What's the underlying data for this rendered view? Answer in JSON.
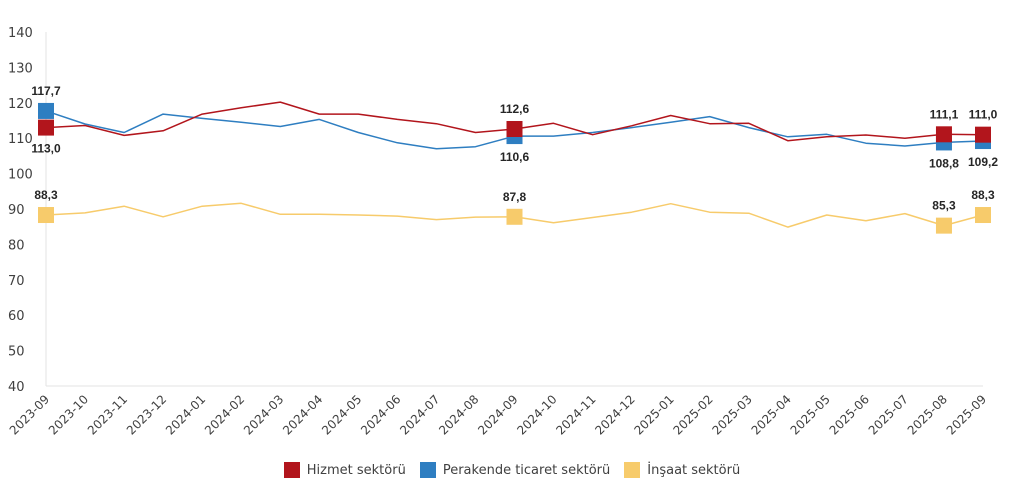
{
  "chart_data": {
    "type": "line",
    "title": "",
    "xlabel": "",
    "ylabel": "",
    "ylim": [
      40,
      140
    ],
    "yticks": [
      "140",
      "130",
      "120",
      "110",
      "100",
      "90",
      "80",
      "70",
      "60",
      "50",
      "40"
    ],
    "grid": false,
    "legend_position": "bottom",
    "categories": [
      "2023-09",
      "2023-10",
      "2023-11",
      "2023-12",
      "2024-01",
      "2024-02",
      "2024-03",
      "2024-04",
      "2024-05",
      "2024-06",
      "2024-07",
      "2024-08",
      "2024-09",
      "2024-10",
      "2024-11",
      "2024-12",
      "2025-01",
      "2025-02",
      "2025-03",
      "2025-04",
      "2025-05",
      "2025-06",
      "2025-07",
      "2025-08",
      "2025-09"
    ],
    "series": [
      {
        "name": "Hizmet sektörü",
        "color": "#B2151C",
        "values": [
          113.0,
          113.6,
          110.8,
          112.1,
          116.8,
          118.6,
          120.2,
          116.8,
          116.8,
          115.3,
          114.1,
          111.6,
          112.6,
          114.2,
          111.0,
          113.5,
          116.4,
          114.1,
          114.2,
          109.3,
          110.4,
          110.9,
          110.0,
          111.1,
          111.0
        ],
        "labels": [
          {
            "index": 0,
            "text": "113,0",
            "position": "below"
          },
          {
            "index": 12,
            "text": "112,6",
            "position": "above"
          },
          {
            "index": 23,
            "text": "111,1",
            "position": "above"
          },
          {
            "index": 24,
            "text": "111,0",
            "position": "above"
          }
        ]
      },
      {
        "name": "Perakende ticaret sektörü",
        "color": "#2E7EC1",
        "values": [
          117.7,
          114.0,
          111.6,
          116.8,
          115.6,
          114.5,
          113.3,
          115.3,
          111.6,
          108.7,
          107.0,
          107.6,
          110.6,
          110.6,
          111.6,
          113.0,
          114.5,
          116.1,
          113.0,
          110.4,
          111.1,
          108.6,
          107.8,
          108.8,
          109.2
        ],
        "labels": [
          {
            "index": 0,
            "text": "117,7",
            "position": "above"
          },
          {
            "index": 12,
            "text": "110,6",
            "position": "below"
          },
          {
            "index": 23,
            "text": "108,8",
            "position": "below"
          },
          {
            "index": 24,
            "text": "109,2",
            "position": "below"
          }
        ]
      },
      {
        "name": "İnşaat sektörü",
        "color": "#F7CB6B",
        "values": [
          88.3,
          88.9,
          90.8,
          87.8,
          90.8,
          91.6,
          88.5,
          88.5,
          88.3,
          88.0,
          87.0,
          87.7,
          87.8,
          86.1,
          87.6,
          89.1,
          91.5,
          89.1,
          88.8,
          84.9,
          88.3,
          86.7,
          88.7,
          85.3,
          88.3
        ],
        "labels": [
          {
            "index": 0,
            "text": "88,3",
            "position": "above"
          },
          {
            "index": 12,
            "text": "87,8",
            "position": "above"
          },
          {
            "index": 23,
            "text": "85,3",
            "position": "above"
          },
          {
            "index": 24,
            "text": "88,3",
            "position": "above"
          }
        ]
      }
    ]
  },
  "legend": {
    "items": [
      {
        "label": "Hizmet sektörü",
        "color": "#B2151C"
      },
      {
        "label": "Perakende ticaret sektörü",
        "color": "#2E7EC1"
      },
      {
        "label": "İnşaat sektörü",
        "color": "#F7CB6B"
      }
    ]
  }
}
